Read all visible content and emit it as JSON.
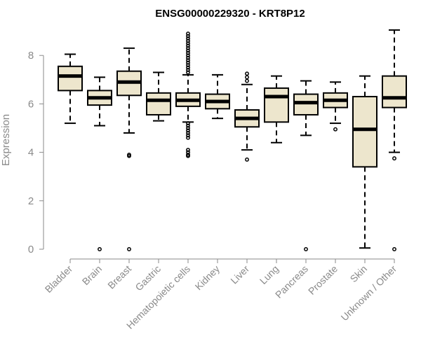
{
  "chart_data": {
    "type": "boxplot",
    "title": "ENSG00000229320 - KRT8P12",
    "xlabel": "",
    "ylabel": "Expression",
    "ylim": [
      0,
      9.2
    ],
    "yticks": [
      0,
      2,
      4,
      6,
      8
    ],
    "colors": {
      "box_fill": "#ede6cd",
      "box_stroke": "#000000",
      "median": "#000000",
      "axis": "#8a8a8a",
      "label": "#8a8a8a"
    },
    "categories": [
      "Bladder",
      "Brain",
      "Breast",
      "Gastric",
      "Hematopoietic cells",
      "Kidney",
      "Liver",
      "Lung",
      "Pancreas",
      "Prostate",
      "Skin",
      "Unknown / Other"
    ],
    "boxes": [
      {
        "category": "Bladder",
        "whisker_low": 5.2,
        "q1": 6.55,
        "median": 7.15,
        "q3": 7.55,
        "whisker_high": 8.05,
        "outliers": []
      },
      {
        "category": "Brain",
        "whisker_low": 5.1,
        "q1": 5.95,
        "median": 6.25,
        "q3": 6.55,
        "whisker_high": 7.1,
        "outliers": [
          0
        ]
      },
      {
        "category": "Breast",
        "whisker_low": 4.8,
        "q1": 6.35,
        "median": 6.9,
        "q3": 7.35,
        "whisker_high": 8.3,
        "outliers": [
          3.85,
          3.9,
          0
        ]
      },
      {
        "category": "Gastric",
        "whisker_low": 5.3,
        "q1": 5.55,
        "median": 6.15,
        "q3": 6.45,
        "whisker_high": 7.3,
        "outliers": []
      },
      {
        "category": "Hematopoietic cells",
        "whisker_low": 5.25,
        "q1": 5.9,
        "median": 6.15,
        "q3": 6.45,
        "whisker_high": 7.2,
        "outliers": [
          8.9,
          8.8,
          8.7,
          8.6,
          8.5,
          8.4,
          8.3,
          8.2,
          8.1,
          8.0,
          7.9,
          7.8,
          7.7,
          7.6,
          7.5,
          7.4,
          7.3,
          5.2,
          5.1,
          5.0,
          4.9,
          4.8,
          4.7,
          4.6,
          4.1,
          4.0,
          3.9,
          3.85
        ]
      },
      {
        "category": "Kidney",
        "whisker_low": 5.4,
        "q1": 5.8,
        "median": 6.1,
        "q3": 6.4,
        "whisker_high": 7.2,
        "outliers": []
      },
      {
        "category": "Liver",
        "whisker_low": 4.1,
        "q1": 5.05,
        "median": 5.4,
        "q3": 5.75,
        "whisker_high": 6.8,
        "outliers": [
          7.25,
          7.1,
          6.95,
          3.7
        ]
      },
      {
        "category": "Lung",
        "whisker_low": 4.4,
        "q1": 5.25,
        "median": 6.3,
        "q3": 6.65,
        "whisker_high": 7.15,
        "outliers": []
      },
      {
        "category": "Pancreas",
        "whisker_low": 4.7,
        "q1": 5.55,
        "median": 6.05,
        "q3": 6.4,
        "whisker_high": 6.95,
        "outliers": [
          0
        ]
      },
      {
        "category": "Prostate",
        "whisker_low": 5.2,
        "q1": 5.85,
        "median": 6.15,
        "q3": 6.45,
        "whisker_high": 6.9,
        "outliers": [
          4.95
        ]
      },
      {
        "category": "Skin",
        "whisker_low": 0.05,
        "q1": 3.4,
        "median": 4.95,
        "q3": 6.3,
        "whisker_high": 7.15,
        "outliers": []
      },
      {
        "category": "Unknown / Other",
        "whisker_low": 4.0,
        "q1": 5.85,
        "median": 6.25,
        "q3": 7.15,
        "whisker_high": 9.05,
        "outliers": [
          3.75,
          0
        ]
      }
    ]
  }
}
